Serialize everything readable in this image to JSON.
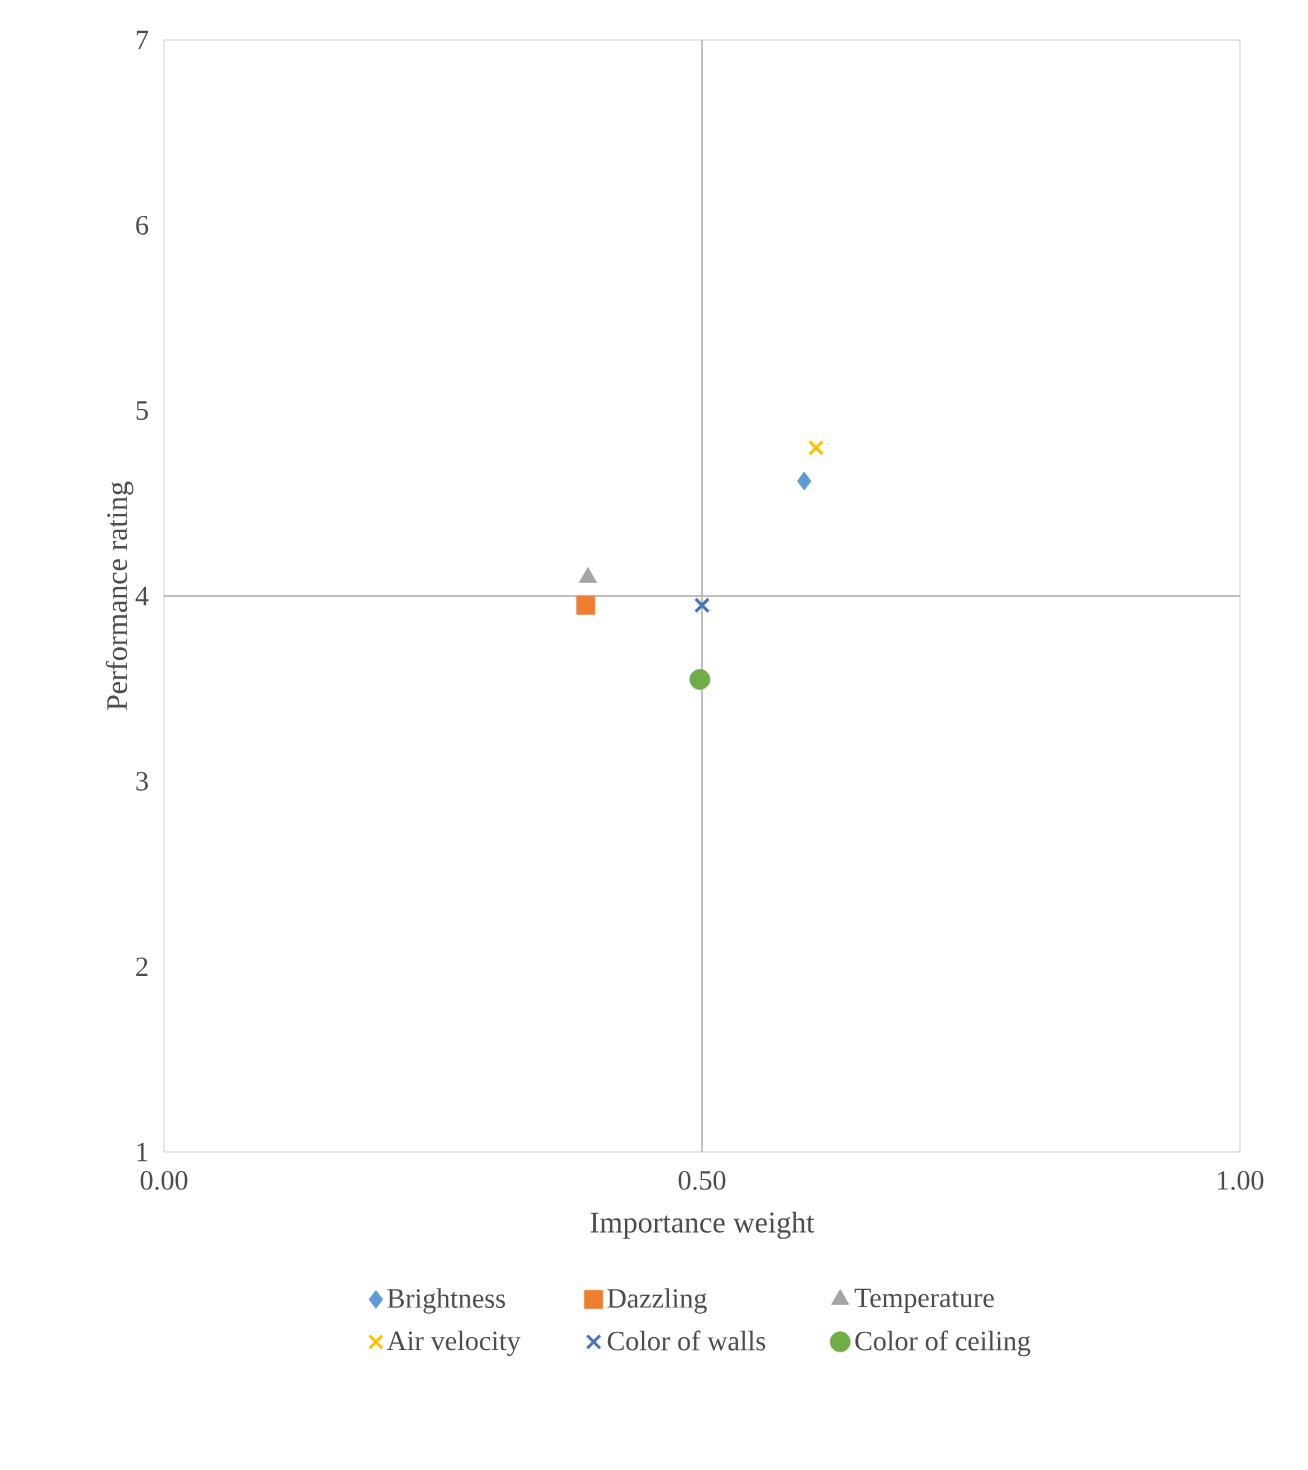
{
  "chart_data": {
    "type": "scatter",
    "xlabel": "Importance weight",
    "ylabel": "Performance rating",
    "xlim": [
      0,
      1
    ],
    "ylim": [
      1,
      7
    ],
    "xticks": [
      {
        "value": 0,
        "label": "0.00"
      },
      {
        "value": 0.5,
        "label": "0.50"
      },
      {
        "value": 1,
        "label": "1.00"
      }
    ],
    "yticks": [
      1,
      2,
      3,
      4,
      5,
      6,
      7
    ],
    "grid": false,
    "legend": "bottom",
    "ref_lines": [
      {
        "axis": "x",
        "value": 0.5,
        "color": "#bfbfbf"
      },
      {
        "axis": "y",
        "value": 4,
        "color": "#bfbfbf"
      }
    ],
    "series": [
      {
        "name": "Brightness",
        "color": "#5b9bd5",
        "marker": "diamond",
        "x": [
          0.595
        ],
        "values": [
          4.62
        ]
      },
      {
        "name": "Dazzling",
        "color": "#ed7d31",
        "marker": "square",
        "x": [
          0.392
        ],
        "values": [
          3.95
        ]
      },
      {
        "name": "Temperature",
        "color": "#a5a5a5",
        "marker": "triangle",
        "x": [
          0.394
        ],
        "values": [
          4.1
        ]
      },
      {
        "name": "Air velocity",
        "color": "#ffc000",
        "marker": "cross",
        "x": [
          0.606
        ],
        "values": [
          4.8
        ]
      },
      {
        "name": "Color of walls",
        "color": "#4472c4",
        "marker": "cross",
        "x": [
          0.5
        ],
        "values": [
          3.95
        ]
      },
      {
        "name": "Color of ceiling",
        "color": "#70ad47",
        "marker": "circle",
        "x": [
          0.498
        ],
        "values": [
          3.55
        ]
      }
    ]
  }
}
